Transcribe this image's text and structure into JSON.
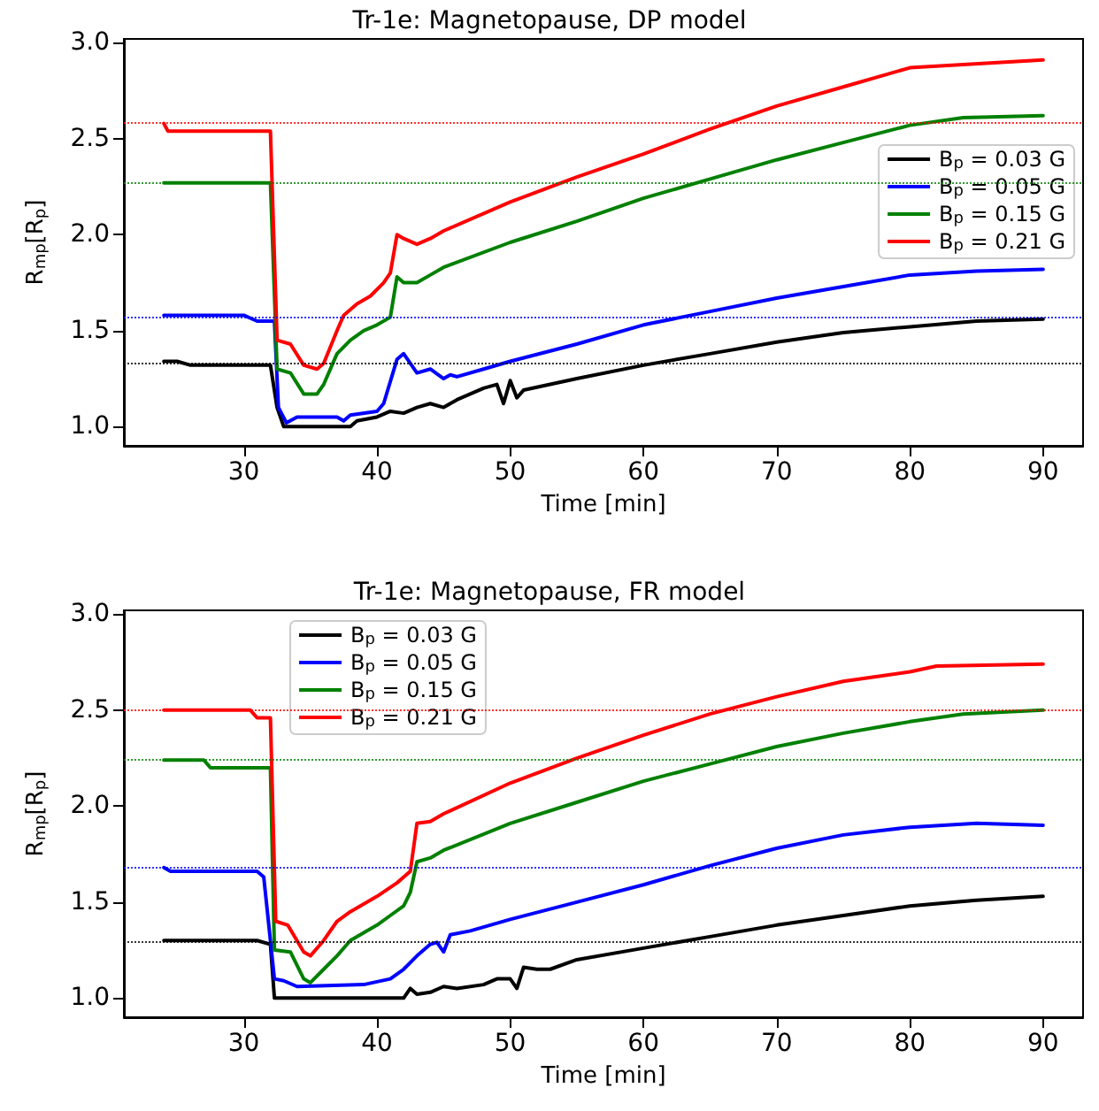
{
  "chart_data": [
    {
      "type": "line",
      "title": "Tr-1e: Magnetopause, DP model",
      "xlabel": "Time [min]",
      "ylabel": "R$_{mp}$[R$_{p}$]",
      "xlim": [
        21,
        93
      ],
      "xticks": [
        30,
        40,
        50,
        60,
        70,
        80,
        90
      ],
      "ylim": [
        0.9,
        3.02
      ],
      "yticks": [
        {
          "value": 1,
          "label": "1.0"
        },
        {
          "value": 1.5,
          "label": "1.5"
        },
        {
          "value": 2,
          "label": "2.0"
        },
        {
          "value": 2.5,
          "label": "2.5"
        },
        {
          "value": 3,
          "label": "3.0"
        }
      ],
      "legend": "right",
      "grid": false,
      "marker": "none",
      "line_style": "solid",
      "series": [
        {
          "name": "B$_{p}$ = 0.03 G",
          "color": "#000000",
          "x": [
            24,
            25,
            26,
            32,
            32.5,
            33,
            38,
            38.5,
            40,
            41,
            42,
            43,
            44,
            45,
            46,
            47,
            48,
            49,
            49.5,
            50,
            50.5,
            51,
            55,
            60,
            65,
            70,
            75,
            80,
            85,
            90
          ],
          "values": [
            1.34,
            1.34,
            1.32,
            1.32,
            1.1,
            1.0,
            1.0,
            1.03,
            1.05,
            1.08,
            1.07,
            1.1,
            1.12,
            1.1,
            1.14,
            1.17,
            1.2,
            1.22,
            1.12,
            1.24,
            1.15,
            1.19,
            1.25,
            1.32,
            1.38,
            1.44,
            1.49,
            1.52,
            1.55,
            1.56
          ]
        },
        {
          "name": "B$_{p}$ = 0.05 G",
          "color": "#0000ff",
          "x": [
            24,
            30,
            31,
            32.3,
            32.6,
            33.2,
            34,
            37,
            37.5,
            38,
            40,
            40.5,
            41.5,
            42,
            43,
            44,
            45,
            45.5,
            46,
            48,
            50,
            55,
            60,
            65,
            70,
            75,
            80,
            85,
            90
          ],
          "values": [
            1.58,
            1.58,
            1.55,
            1.55,
            1.1,
            1.02,
            1.05,
            1.05,
            1.03,
            1.06,
            1.08,
            1.12,
            1.35,
            1.38,
            1.28,
            1.3,
            1.25,
            1.27,
            1.26,
            1.3,
            1.34,
            1.43,
            1.53,
            1.6,
            1.67,
            1.73,
            1.79,
            1.81,
            1.82
          ]
        },
        {
          "name": "B$_{p}$ = 0.15 G",
          "color": "#008000",
          "x": [
            24,
            32,
            32.5,
            33.5,
            34.5,
            35.5,
            36,
            37,
            38,
            39,
            40,
            41,
            41.5,
            42,
            43,
            44,
            45,
            50,
            55,
            60,
            65,
            70,
            75,
            80,
            84,
            90
          ],
          "values": [
            2.27,
            2.27,
            1.3,
            1.28,
            1.17,
            1.17,
            1.22,
            1.38,
            1.45,
            1.5,
            1.53,
            1.57,
            1.78,
            1.75,
            1.75,
            1.79,
            1.83,
            1.96,
            2.07,
            2.19,
            2.29,
            2.39,
            2.48,
            2.57,
            2.61,
            2.62
          ]
        },
        {
          "name": "B$_{p}$ = 0.21 G",
          "color": "#ff0000",
          "x": [
            24,
            24.3,
            32,
            32.5,
            33.5,
            34.5,
            35.5,
            36,
            37,
            37.5,
            38.5,
            39.5,
            40.5,
            41,
            41.5,
            42,
            43,
            44,
            45,
            50,
            55,
            60,
            65,
            70,
            75,
            80,
            90
          ],
          "values": [
            2.58,
            2.54,
            2.54,
            1.45,
            1.43,
            1.32,
            1.3,
            1.33,
            1.5,
            1.58,
            1.64,
            1.68,
            1.75,
            1.8,
            2.0,
            1.98,
            1.95,
            1.98,
            2.02,
            2.17,
            2.3,
            2.42,
            2.55,
            2.67,
            2.77,
            2.87,
            2.91
          ]
        }
      ],
      "ref_lines": [
        {
          "axis": "y",
          "value": 2.58,
          "color": "#ff0000",
          "line_style": "dotted"
        },
        {
          "axis": "y",
          "value": 2.27,
          "color": "#008000",
          "line_style": "dotted"
        },
        {
          "axis": "y",
          "value": 1.57,
          "color": "#0000ff",
          "line_style": "dotted"
        },
        {
          "axis": "y",
          "value": 1.33,
          "color": "#000000",
          "line_style": "dotted"
        }
      ]
    },
    {
      "type": "line",
      "title": "Tr-1e: Magnetopause, FR model",
      "xlabel": "Time [min]",
      "ylabel": "R$_{mp}$[R$_{p}$]",
      "xlim": [
        21,
        93
      ],
      "xticks": [
        30,
        40,
        50,
        60,
        70,
        80,
        90
      ],
      "ylim": [
        0.9,
        3.02
      ],
      "yticks": [
        {
          "value": 1,
          "label": "1.0"
        },
        {
          "value": 1.5,
          "label": "1.5"
        },
        {
          "value": 2,
          "label": "2.0"
        },
        {
          "value": 2.5,
          "label": "2.5"
        },
        {
          "value": 3,
          "label": "3.0"
        }
      ],
      "legend": "top left",
      "grid": false,
      "marker": "none",
      "line_style": "solid",
      "series": [
        {
          "name": "B$_{p}$ = 0.03 G",
          "color": "#000000",
          "x": [
            24,
            31,
            32,
            32.3,
            42,
            42.5,
            43,
            44,
            45,
            46,
            48,
            49,
            50,
            50.5,
            51,
            52,
            53,
            55,
            60,
            65,
            70,
            75,
            80,
            85,
            90
          ],
          "values": [
            1.3,
            1.3,
            1.28,
            1.0,
            1.0,
            1.05,
            1.02,
            1.03,
            1.06,
            1.05,
            1.07,
            1.1,
            1.1,
            1.05,
            1.16,
            1.15,
            1.15,
            1.2,
            1.26,
            1.32,
            1.38,
            1.43,
            1.48,
            1.51,
            1.53
          ]
        },
        {
          "name": "B$_{p}$ = 0.05 G",
          "color": "#0000ff",
          "x": [
            24,
            24.5,
            31,
            31.5,
            32.3,
            33,
            34,
            39,
            41,
            42,
            43,
            44,
            44.5,
            45,
            45.5,
            47,
            50,
            55,
            60,
            65,
            70,
            75,
            80,
            85,
            90
          ],
          "values": [
            1.68,
            1.66,
            1.66,
            1.63,
            1.1,
            1.09,
            1.06,
            1.07,
            1.1,
            1.15,
            1.22,
            1.28,
            1.29,
            1.24,
            1.33,
            1.35,
            1.41,
            1.5,
            1.59,
            1.69,
            1.78,
            1.85,
            1.89,
            1.91,
            1.9
          ]
        },
        {
          "name": "B$_{p}$ = 0.15 G",
          "color": "#008000",
          "x": [
            24,
            27,
            27.5,
            32,
            32.3,
            33.5,
            34.5,
            35,
            36,
            37,
            38,
            39,
            40,
            41,
            42,
            42.5,
            43,
            44,
            45,
            50,
            55,
            60,
            65,
            70,
            75,
            80,
            84,
            90
          ],
          "values": [
            2.24,
            2.24,
            2.2,
            2.2,
            1.25,
            1.24,
            1.1,
            1.08,
            1.15,
            1.22,
            1.3,
            1.34,
            1.38,
            1.43,
            1.48,
            1.55,
            1.71,
            1.73,
            1.77,
            1.91,
            2.02,
            2.13,
            2.22,
            2.31,
            2.38,
            2.44,
            2.48,
            2.5
          ]
        },
        {
          "name": "B$_{p}$ = 0.21 G",
          "color": "#ff0000",
          "x": [
            24,
            30.5,
            31,
            32,
            32.4,
            33.3,
            34.5,
            35,
            36,
            37,
            38,
            40,
            41.5,
            42.5,
            43,
            44,
            45,
            50,
            55,
            60,
            65,
            70,
            75,
            80,
            82,
            90
          ],
          "values": [
            2.5,
            2.5,
            2.46,
            2.46,
            1.4,
            1.38,
            1.24,
            1.22,
            1.3,
            1.4,
            1.45,
            1.53,
            1.6,
            1.66,
            1.91,
            1.92,
            1.96,
            2.12,
            2.25,
            2.37,
            2.48,
            2.57,
            2.65,
            2.7,
            2.73,
            2.74
          ]
        }
      ],
      "ref_lines": [
        {
          "axis": "y",
          "value": 2.5,
          "color": "#ff0000",
          "line_style": "dotted"
        },
        {
          "axis": "y",
          "value": 2.24,
          "color": "#008000",
          "line_style": "dotted"
        },
        {
          "axis": "y",
          "value": 1.68,
          "color": "#0000ff",
          "line_style": "dotted"
        },
        {
          "axis": "y",
          "value": 1.29,
          "color": "#000000",
          "line_style": "dotted"
        }
      ]
    }
  ]
}
